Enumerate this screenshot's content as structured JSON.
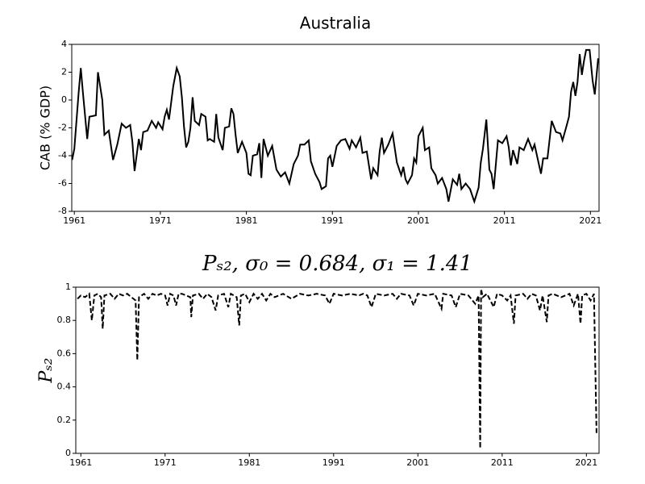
{
  "chart_data": [
    {
      "type": "line",
      "title": "Australia",
      "y_label": "CAB (% GDP)",
      "xlim": [
        1960.7,
        2022
      ],
      "xticks": [
        1961,
        1971,
        1981,
        1991,
        2001,
        2011,
        2021
      ],
      "ylim": [
        -8,
        4
      ],
      "yticks": [
        -8,
        -6,
        -4,
        -2,
        0,
        2,
        4
      ],
      "series": [
        {
          "color": "#000000",
          "dash": false,
          "x": [
            1960.75,
            1961,
            1961.5,
            1961.75,
            1962,
            1962.5,
            1962.75,
            1963.5,
            1963.75,
            1964.25,
            1964.5,
            1965,
            1965.5,
            1966,
            1966.5,
            1967,
            1967.5,
            1967.75,
            1968,
            1968.5,
            1968.75,
            1969,
            1969.5,
            1970,
            1970.5,
            1970.75,
            1971.25,
            1971.5,
            1971.75,
            1972,
            1972.5,
            1972.9,
            1973.25,
            1973.5,
            1973.75,
            1974,
            1974.25,
            1974.5,
            1974.75,
            1975,
            1975.5,
            1975.75,
            1976.25,
            1976.5,
            1976.75,
            1977.25,
            1977.5,
            1977.75,
            1978.25,
            1978.5,
            1979,
            1979.25,
            1979.5,
            1979.75,
            1980,
            1980.5,
            1981,
            1981.25,
            1981.5,
            1981.75,
            1982.25,
            1982.5,
            1982.75,
            1983,
            1983.5,
            1984,
            1984.5,
            1985,
            1985.5,
            1986,
            1986.5,
            1987,
            1987.25,
            1987.75,
            1988.25,
            1988.5,
            1989,
            1989.5,
            1989.75,
            1990.25,
            1990.5,
            1990.75,
            1991,
            1991.5,
            1992,
            1992.5,
            1993,
            1993.25,
            1993.75,
            1994.25,
            1994.5,
            1995,
            1995.5,
            1995.75,
            1996.25,
            1996.5,
            1996.75,
            1997,
            1997.5,
            1998,
            1998.5,
            1999,
            1999.25,
            1999.5,
            1999.75,
            2000.25,
            2000.5,
            2000.75,
            2001,
            2001.5,
            2001.75,
            2002.25,
            2002.5,
            2003,
            2003.25,
            2003.75,
            2004.25,
            2004.5,
            2005,
            2005.5,
            2005.75,
            2006,
            2006.5,
            2007,
            2007.5,
            2008,
            2008.25,
            2008.5,
            2008.9,
            2009.25,
            2009.5,
            2009.75,
            2010.25,
            2010.75,
            2011.25,
            2011.5,
            2011.75,
            2012,
            2012.5,
            2012.75,
            2013.25,
            2013.75,
            2014.25,
            2014.5,
            2015,
            2015.25,
            2015.5,
            2016,
            2016.5,
            2017,
            2017.5,
            2017.75,
            2018.25,
            2018.5,
            2018.75,
            2019,
            2019.25,
            2019.5,
            2019.75,
            2020,
            2020.25,
            2020.5,
            2020.9,
            2021.25,
            2021.5,
            2021.9
          ],
          "values": [
            -4.3,
            -3.5,
            0.5,
            2.3,
            0.5,
            -2.8,
            -1.2,
            -1.1,
            2.0,
            0,
            -2.5,
            -2.2,
            -4.3,
            -3.2,
            -1.7,
            -2.0,
            -1.8,
            -3.0,
            -5.1,
            -2.8,
            -3.6,
            -2.3,
            -2.2,
            -1.5,
            -2.0,
            -1.6,
            -2.1,
            -1.2,
            -0.7,
            -1.4,
            1.0,
            2.3,
            1.7,
            0.2,
            -1.9,
            -3.4,
            -3.0,
            -2.0,
            0.2,
            -1.5,
            -1.8,
            -1.0,
            -1.2,
            -2.9,
            -2.8,
            -3.0,
            -1.0,
            -2.7,
            -3.6,
            -2.0,
            -1.9,
            -0.6,
            -1.0,
            -2.5,
            -3.8,
            -3.0,
            -3.8,
            -5.3,
            -5.4,
            -4.0,
            -3.9,
            -3.1,
            -5.6,
            -2.8,
            -4.0,
            -3.3,
            -5.0,
            -5.5,
            -5.2,
            -6.0,
            -4.6,
            -4.0,
            -3.2,
            -3.2,
            -2.9,
            -4.4,
            -5.3,
            -5.9,
            -6.4,
            -6.2,
            -4.2,
            -4.0,
            -4.8,
            -3.3,
            -2.9,
            -2.8,
            -3.5,
            -2.9,
            -3.4,
            -2.7,
            -3.8,
            -3.7,
            -5.7,
            -4.9,
            -5.4,
            -3.7,
            -2.7,
            -3.8,
            -3.2,
            -2.4,
            -4.5,
            -5.4,
            -4.8,
            -5.7,
            -6.0,
            -5.4,
            -4.2,
            -4.5,
            -2.6,
            -2.0,
            -3.6,
            -3.4,
            -4.9,
            -5.4,
            -6.0,
            -5.6,
            -6.4,
            -7.3,
            -5.7,
            -6.1,
            -5.3,
            -6.4,
            -6.0,
            -6.4,
            -7.3,
            -6.3,
            -4.5,
            -3.5,
            -1.4,
            -5.0,
            -5.3,
            -6.4,
            -2.9,
            -3.1,
            -2.6,
            -3.4,
            -4.7,
            -3.6,
            -4.6,
            -3.4,
            -3.6,
            -2.8,
            -3.6,
            -3.2,
            -4.6,
            -5.3,
            -4.2,
            -4.2,
            -1.5,
            -2.3,
            -2.4,
            -2.9,
            -1.8,
            -1.2,
            0.6,
            1.3,
            0.3,
            1.3,
            3.3,
            1.8,
            2.8,
            3.6,
            3.6,
            1.4,
            0.4,
            3.0
          ]
        }
      ]
    },
    {
      "type": "line",
      "title": "Pₛ₂, σ₀ = 0.684, σ₁ = 1.41",
      "y_label": "Pₛ₂",
      "xlim": [
        1960.4,
        2022.5
      ],
      "xticks": [
        1961,
        1971,
        1981,
        1991,
        2001,
        2011,
        2021
      ],
      "ylim": [
        0,
        1
      ],
      "yticks": [
        0,
        0.2,
        0.4,
        0.6,
        0.8,
        1
      ],
      "series": [
        {
          "color": "#000000",
          "dash": true,
          "x": [
            1960.6,
            1961,
            1961.5,
            1962,
            1962.3,
            1962.6,
            1963,
            1963.4,
            1963.6,
            1963.8,
            1964.5,
            1965,
            1965.5,
            1966,
            1966.5,
            1967,
            1967.5,
            1967.7,
            1967.9,
            1968.5,
            1969,
            1969.5,
            1970,
            1970.5,
            1971,
            1971.3,
            1971.6,
            1972,
            1972.3,
            1972.6,
            1973,
            1973.5,
            1974,
            1974.1,
            1974.3,
            1975,
            1975.5,
            1976,
            1976.5,
            1977,
            1977.3,
            1978,
            1978.5,
            1978.8,
            1979.5,
            1979.8,
            1980,
            1980.5,
            1981,
            1981.5,
            1982,
            1982.5,
            1983,
            1983.5,
            1984,
            1985,
            1986,
            1987,
            1988,
            1989,
            1990,
            1990.5,
            1991,
            1992,
            1993,
            1994,
            1994.5,
            1995,
            1995.5,
            1996,
            1997,
            1998,
            1998.5,
            1999,
            2000,
            2000.5,
            2001,
            2002,
            2003,
            2003.8,
            2004,
            2005,
            2005.5,
            2006,
            2007,
            2007.8,
            2008.2,
            2008.4,
            2008.5,
            2008.7,
            2009.2,
            2010,
            2010.4,
            2011,
            2011.6,
            2012,
            2012.4,
            2012.6,
            2013.5,
            2014,
            2014.5,
            2015,
            2015.5,
            2015.8,
            2016.3,
            2016.5,
            2017,
            2018,
            2019,
            2019.5,
            2020,
            2020.3,
            2020.5,
            2021,
            2021.5,
            2021.9,
            2022.2
          ],
          "values": [
            0.93,
            0.95,
            0.94,
            0.96,
            0.8,
            0.95,
            0.96,
            0.94,
            0.75,
            0.95,
            0.96,
            0.93,
            0.96,
            0.95,
            0.96,
            0.94,
            0.92,
            0.56,
            0.94,
            0.96,
            0.93,
            0.96,
            0.95,
            0.96,
            0.95,
            0.89,
            0.96,
            0.95,
            0.89,
            0.96,
            0.96,
            0.95,
            0.94,
            0.82,
            0.95,
            0.96,
            0.93,
            0.96,
            0.94,
            0.86,
            0.95,
            0.96,
            0.88,
            0.96,
            0.94,
            0.77,
            0.95,
            0.96,
            0.91,
            0.96,
            0.93,
            0.96,
            0.92,
            0.96,
            0.94,
            0.96,
            0.93,
            0.96,
            0.95,
            0.96,
            0.95,
            0.9,
            0.96,
            0.95,
            0.96,
            0.95,
            0.96,
            0.95,
            0.88,
            0.96,
            0.95,
            0.96,
            0.93,
            0.96,
            0.95,
            0.89,
            0.96,
            0.95,
            0.96,
            0.87,
            0.96,
            0.95,
            0.88,
            0.96,
            0.95,
            0.9,
            0.95,
            0.03,
            0.99,
            0.94,
            0.96,
            0.88,
            0.96,
            0.95,
            0.92,
            0.95,
            0.78,
            0.95,
            0.96,
            0.93,
            0.96,
            0.95,
            0.86,
            0.95,
            0.79,
            0.95,
            0.96,
            0.94,
            0.96,
            0.89,
            0.96,
            0.78,
            0.95,
            0.96,
            0.92,
            0.96,
            0.12
          ]
        }
      ]
    }
  ]
}
